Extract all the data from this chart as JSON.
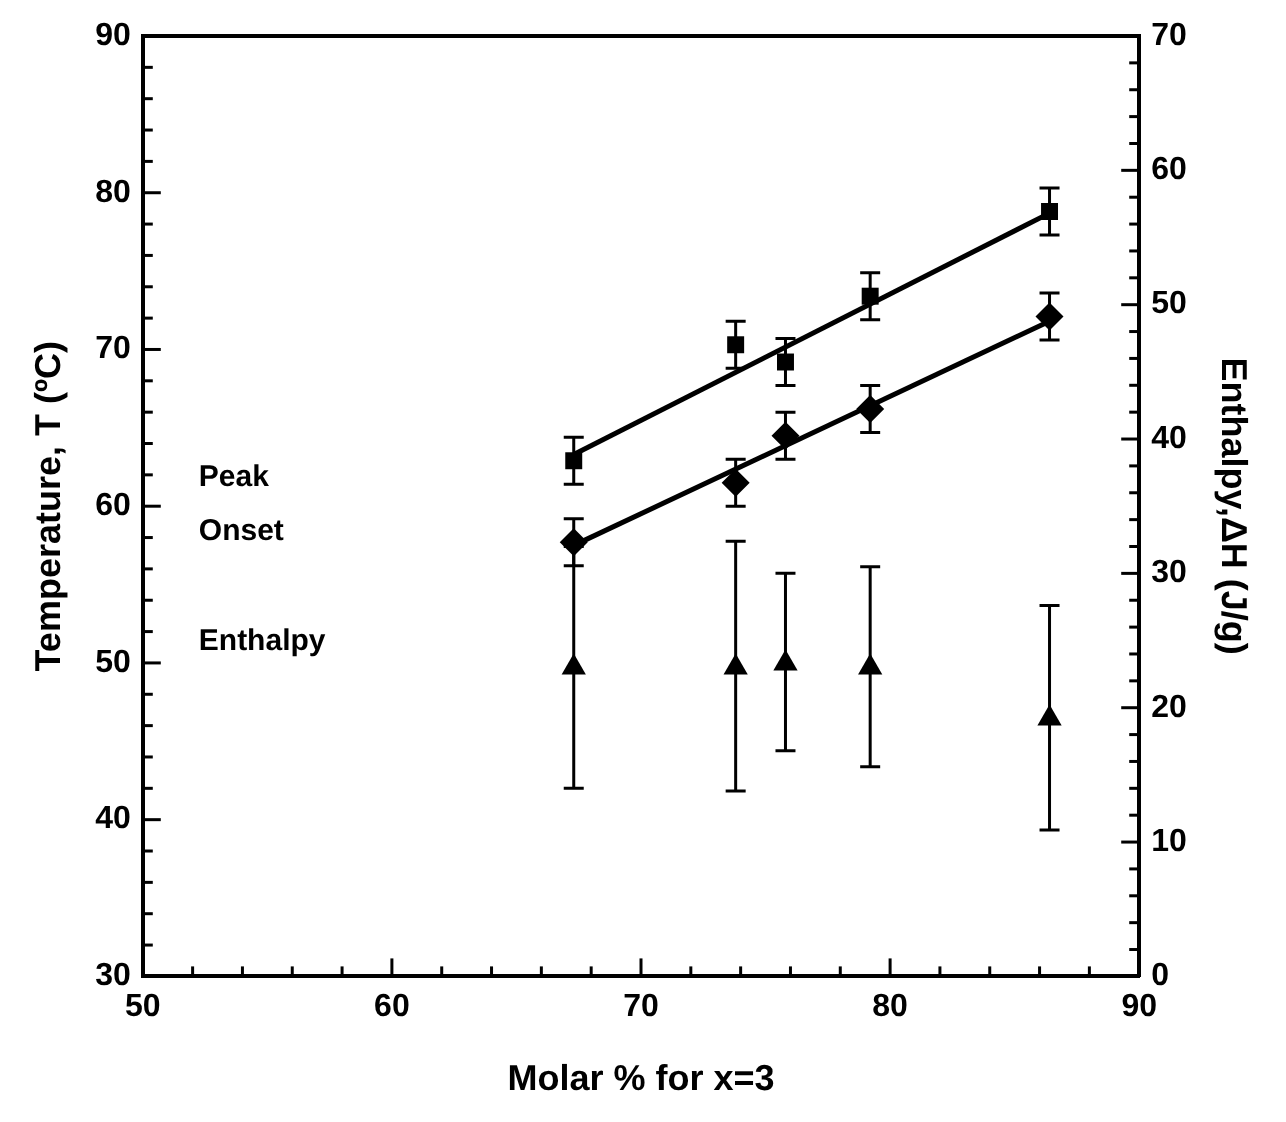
{
  "chart_data": {
    "type": "scatter",
    "xlabel": "Molar % for x=3",
    "ylabel": "Temperature, T (ºC)",
    "y2label": "Enthalpy,ΔH (J/g)",
    "xlim": [
      50,
      90
    ],
    "ylim": [
      30,
      90
    ],
    "y2lim": [
      0,
      70
    ],
    "xticks": [
      50,
      {
        "value": 52,
        "label": null
      },
      {
        "value": 54,
        "label": null
      },
      {
        "value": 56,
        "label": null
      },
      {
        "value": 58,
        "label": null
      },
      60,
      {
        "value": 62,
        "label": null
      },
      {
        "value": 64,
        "label": null
      },
      {
        "value": 66,
        "label": null
      },
      {
        "value": 68,
        "label": null
      },
      70,
      {
        "value": 72,
        "label": null
      },
      {
        "value": 74,
        "label": null
      },
      {
        "value": 76,
        "label": null
      },
      {
        "value": 78,
        "label": null
      },
      80,
      {
        "value": 82,
        "label": null
      },
      {
        "value": 84,
        "label": null
      },
      {
        "value": 86,
        "label": null
      },
      {
        "value": 88,
        "label": null
      },
      90
    ],
    "yticks": [
      30,
      {
        "value": 32,
        "label": null
      },
      {
        "value": 34,
        "label": null
      },
      {
        "value": 36,
        "label": null
      },
      {
        "value": 38,
        "label": null
      },
      40,
      {
        "value": 42,
        "label": null
      },
      {
        "value": 44,
        "label": null
      },
      {
        "value": 46,
        "label": null
      },
      {
        "value": 48,
        "label": null
      },
      50,
      {
        "value": 52,
        "label": null
      },
      {
        "value": 54,
        "label": null
      },
      {
        "value": 56,
        "label": null
      },
      {
        "value": 58,
        "label": null
      },
      60,
      {
        "value": 62,
        "label": null
      },
      {
        "value": 64,
        "label": null
      },
      {
        "value": 66,
        "label": null
      },
      {
        "value": 68,
        "label": null
      },
      70,
      {
        "value": 72,
        "label": null
      },
      {
        "value": 74,
        "label": null
      },
      {
        "value": 76,
        "label": null
      },
      {
        "value": 78,
        "label": null
      },
      80,
      {
        "value": 82,
        "label": null
      },
      {
        "value": 84,
        "label": null
      },
      {
        "value": 86,
        "label": null
      },
      {
        "value": 88,
        "label": null
      },
      90
    ],
    "y2ticks": [
      0,
      {
        "value": 2,
        "label": null
      },
      {
        "value": 4,
        "label": null
      },
      {
        "value": 6,
        "label": null
      },
      {
        "value": 8,
        "label": null
      },
      10,
      {
        "value": 12,
        "label": null
      },
      {
        "value": 14,
        "label": null
      },
      {
        "value": 16,
        "label": null
      },
      {
        "value": 18,
        "label": null
      },
      20,
      {
        "value": 22,
        "label": null
      },
      {
        "value": 24,
        "label": null
      },
      {
        "value": 26,
        "label": null
      },
      {
        "value": 28,
        "label": null
      },
      30,
      {
        "value": 32,
        "label": null
      },
      {
        "value": 34,
        "label": null
      },
      {
        "value": 36,
        "label": null
      },
      {
        "value": 38,
        "label": null
      },
      40,
      {
        "value": 42,
        "label": null
      },
      {
        "value": 44,
        "label": null
      },
      {
        "value": 46,
        "label": null
      },
      {
        "value": 48,
        "label": null
      },
      50,
      {
        "value": 52,
        "label": null
      },
      {
        "value": 54,
        "label": null
      },
      {
        "value": 56,
        "label": null
      },
      {
        "value": 58,
        "label": null
      },
      60,
      {
        "value": 62,
        "label": null
      },
      {
        "value": 64,
        "label": null
      },
      {
        "value": 66,
        "label": null
      },
      {
        "value": 68,
        "label": null
      },
      70
    ],
    "grid": false,
    "legend": false,
    "annotations": [
      "Peak",
      "Onset",
      "Enthalpy"
    ],
    "series": [
      {
        "marker": "square",
        "color": "#000000",
        "x": [
          67.3,
          73.8,
          75.8,
          79.2,
          86.4
        ],
        "values": [
          62.9,
          70.3,
          69.2,
          73.4,
          78.8
        ],
        "errors": [
          1.5,
          1.5,
          1.5,
          1.5,
          1.5
        ]
      },
      {
        "marker": "diamond",
        "color": "#000000",
        "x": [
          67.3,
          73.8,
          75.8,
          79.2,
          86.4
        ],
        "values": [
          57.7,
          61.5,
          64.5,
          66.2,
          72.1
        ],
        "errors": [
          1.5,
          1.5,
          1.5,
          1.5,
          1.5
        ]
      },
      {
        "marker": "triangle",
        "color": "#000000",
        "axis": "y2",
        "x": [
          67.3,
          73.8,
          75.8,
          79.2,
          86.4
        ],
        "values": [
          23.0,
          23.0,
          23.3,
          23.0,
          19.2
        ],
        "errors": [
          [
            14.0,
            32.0
          ],
          [
            13.8,
            32.4
          ],
          [
            16.8,
            30.0
          ],
          [
            15.6,
            30.5
          ],
          [
            10.9,
            27.6
          ]
        ]
      },
      {
        "type": "line",
        "marker": "none",
        "line_style": "solid",
        "color": "#000000",
        "x": [
          67.3,
          86.4
        ],
        "values": [
          63.3,
          78.7
        ]
      },
      {
        "type": "line",
        "marker": "none",
        "line_style": "solid",
        "color": "#000000",
        "x": [
          67.3,
          86.4
        ],
        "values": [
          57.5,
          71.8
        ]
      }
    ]
  }
}
